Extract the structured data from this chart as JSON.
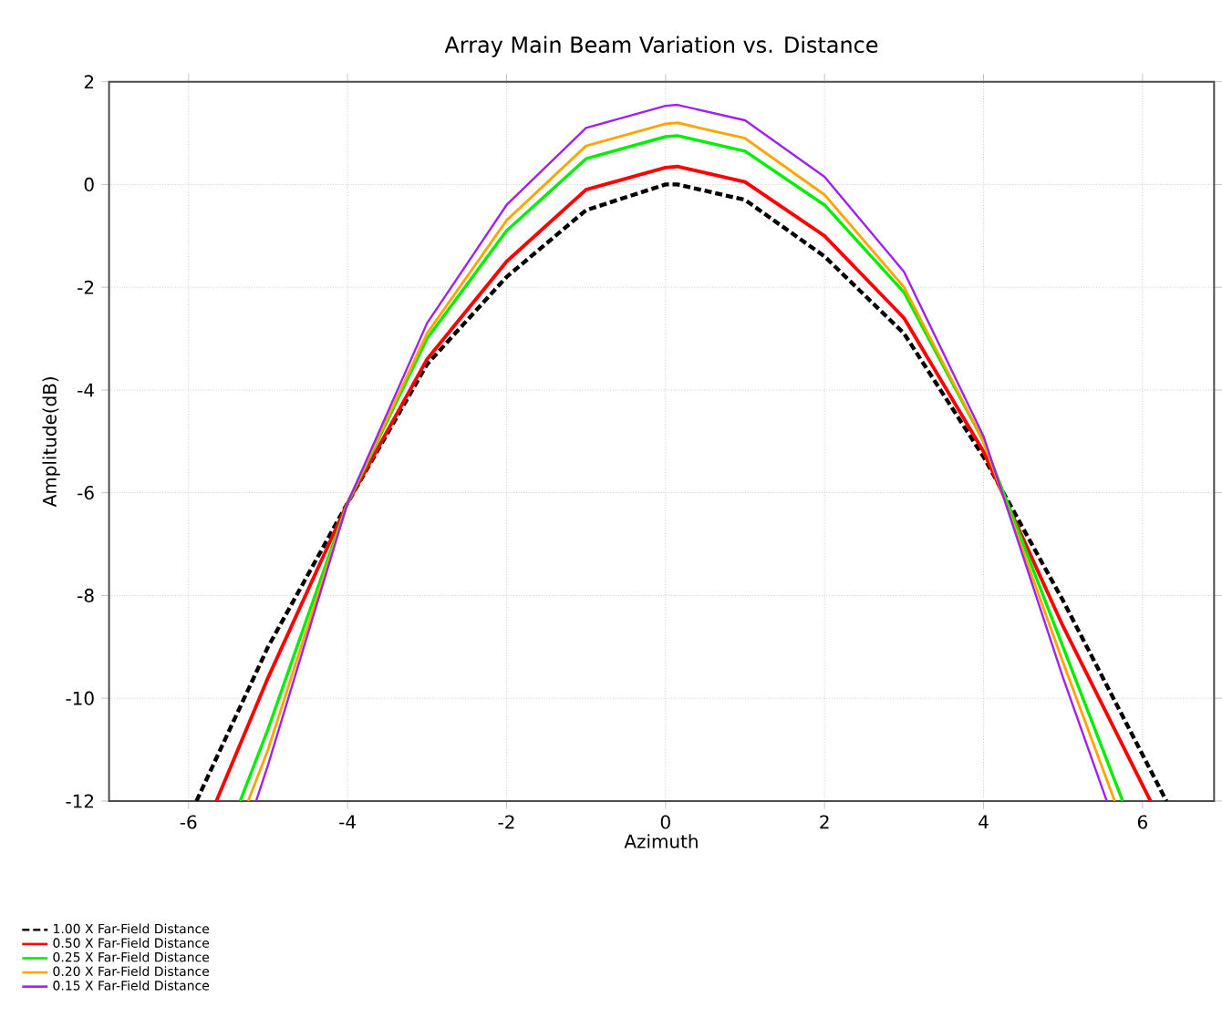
{
  "chart_data": {
    "type": "line",
    "title": "Array Main Beam Variation vs. Distance",
    "xlabel": "Azimuth",
    "ylabel": "Amplitude(dB)",
    "xlim": [
      -7,
      6.9
    ],
    "ylim": [
      -12,
      2
    ],
    "xticks": [
      -6,
      -4,
      -2,
      0,
      2,
      4,
      6
    ],
    "yticks": [
      -12,
      -10,
      -8,
      -6,
      -4,
      -2,
      0,
      2
    ],
    "grid": true,
    "legend": "bottom left",
    "marker": "none",
    "series": [
      {
        "name": "1.00 X Far-Field Distance",
        "color": "#000000",
        "line_style": "dashed",
        "x": [
          -5.9,
          -5,
          -4,
          -3,
          -2,
          -1,
          0,
          0.15,
          1,
          2,
          3,
          4,
          5,
          6.3
        ],
        "values": [
          -12,
          -9.0,
          -6.2,
          -3.5,
          -1.8,
          -0.5,
          0,
          0,
          -0.3,
          -1.4,
          -2.9,
          -5.3,
          -8.1,
          -12
        ]
      },
      {
        "name": "0.50 X Far-Field Distance",
        "color": "#ff0000",
        "line_style": "solid",
        "x": [
          -5.65,
          -5,
          -4,
          -3,
          -2,
          -1,
          0,
          0.15,
          1,
          2,
          3,
          4,
          5,
          6.1
        ],
        "values": [
          -12,
          -9.6,
          -6.2,
          -3.4,
          -1.5,
          -0.1,
          0.33,
          0.35,
          0.05,
          -1.0,
          -2.6,
          -5.2,
          -8.6,
          -12
        ]
      },
      {
        "name": "0.25 X Far-Field Distance",
        "color": "#00ee00",
        "line_style": "solid",
        "x": [
          -5.35,
          -5,
          -4,
          -3,
          -2,
          -1,
          0,
          0.15,
          1,
          2,
          3,
          4,
          5,
          5.75
        ],
        "values": [
          -12,
          -10.6,
          -6.2,
          -3.0,
          -0.9,
          0.5,
          0.93,
          0.95,
          0.65,
          -0.4,
          -2.1,
          -5.0,
          -9.0,
          -12
        ]
      },
      {
        "name": "0.20 X Far-Field Distance",
        "color": "#ffa500",
        "line_style": "solid",
        "x": [
          -5.25,
          -5,
          -4,
          -3,
          -2,
          -1,
          0,
          0.15,
          1,
          2,
          3,
          4,
          5,
          5.65
        ],
        "values": [
          -12,
          -11.0,
          -6.2,
          -2.9,
          -0.7,
          0.75,
          1.18,
          1.2,
          0.9,
          -0.2,
          -2.0,
          -5.0,
          -9.3,
          -12
        ]
      },
      {
        "name": "0.15 X Far-Field Distance",
        "color": "#a020f0",
        "line_style": "solid",
        "x": [
          -5.15,
          -5,
          -4,
          -3,
          -2,
          -1,
          0,
          0.15,
          1,
          2,
          3,
          4,
          5,
          5.55
        ],
        "values": [
          -12,
          -11.3,
          -6.2,
          -2.7,
          -0.4,
          1.1,
          1.53,
          1.55,
          1.25,
          0.15,
          -1.7,
          -4.9,
          -9.6,
          -12
        ]
      }
    ]
  }
}
